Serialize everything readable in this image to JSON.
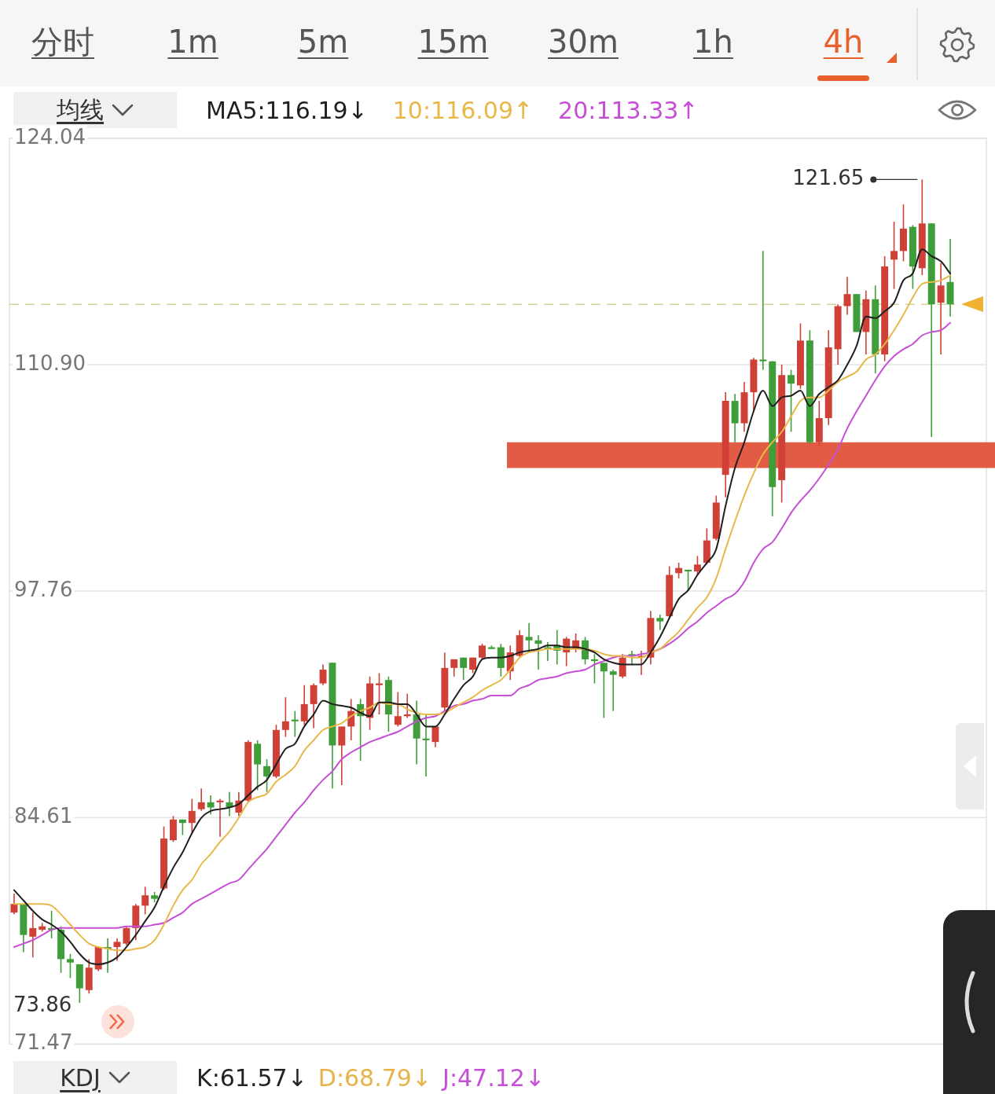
{
  "chart_data": {
    "type": "candlestick",
    "categories": [
      null,
      null,
      null,
      null,
      null,
      null,
      null,
      null,
      null,
      null,
      null,
      null,
      null,
      null,
      null,
      null,
      null,
      null,
      null,
      null,
      null,
      null,
      null,
      null,
      null,
      null,
      null,
      null,
      null,
      null,
      null,
      null,
      null,
      null,
      null,
      null,
      null,
      null,
      null,
      null,
      null,
      null,
      null,
      null,
      null,
      null,
      null,
      null,
      null,
      null,
      null,
      null,
      null,
      null,
      null,
      null,
      null,
      null,
      null,
      null,
      null,
      null,
      null,
      null,
      null,
      null,
      null,
      null,
      null,
      null,
      null,
      null,
      null,
      null,
      null,
      null,
      null,
      null,
      null,
      null,
      null,
      null,
      null,
      null,
      null,
      null,
      null,
      null,
      null,
      null,
      null,
      null,
      null,
      null,
      null,
      null,
      null,
      null,
      null,
      null,
      null
    ],
    "ohlc": [
      [
        79.1,
        80.2,
        79.0,
        79.6
      ],
      [
        79.6,
        79.6,
        76.8,
        77.8
      ],
      [
        77.7,
        79.1,
        76.5,
        78.2
      ],
      [
        78.1,
        78.5,
        78.0,
        78.3
      ],
      [
        78.2,
        79.2,
        77.6,
        78.1
      ],
      [
        78.1,
        78.3,
        75.6,
        76.4
      ],
      [
        76.4,
        76.7,
        75.3,
        76.2
      ],
      [
        76.1,
        76.1,
        73.86,
        74.7
      ],
      [
        74.6,
        76.4,
        74.4,
        75.9
      ],
      [
        75.8,
        77.1,
        75.7,
        77.1
      ],
      [
        77.1,
        77.6,
        75.6,
        77.0
      ],
      [
        77.1,
        77.6,
        76.3,
        77.4
      ],
      [
        77.3,
        78.3,
        77.2,
        78.2
      ],
      [
        78.2,
        79.6,
        77.5,
        79.5
      ],
      [
        79.5,
        80.6,
        79.0,
        80.1
      ],
      [
        80.1,
        80.3,
        79.7,
        79.9
      ],
      [
        80.5,
        84.1,
        80.4,
        83.4
      ],
      [
        83.3,
        84.7,
        83.2,
        84.5
      ],
      [
        84.5,
        84.5,
        83.6,
        84.3
      ],
      [
        84.3,
        85.7,
        83.7,
        85.0
      ],
      [
        85.1,
        86.3,
        85.0,
        85.5
      ],
      [
        85.5,
        85.9,
        84.8,
        85.2
      ],
      [
        85.5,
        85.7,
        83.5,
        85.6
      ],
      [
        85.5,
        86.1,
        84.7,
        85.2
      ],
      [
        84.9,
        86.1,
        84.7,
        85.6
      ],
      [
        85.6,
        89.1,
        85.5,
        89.0
      ],
      [
        88.9,
        89.1,
        86.2,
        87.7
      ],
      [
        87.6,
        88.0,
        86.1,
        87.0
      ],
      [
        87.0,
        90.0,
        86.9,
        89.7
      ],
      [
        89.7,
        91.6,
        89.3,
        90.2
      ],
      [
        90.3,
        90.8,
        89.3,
        90.2
      ],
      [
        90.2,
        92.3,
        90.0,
        91.2
      ],
      [
        91.2,
        92.4,
        89.8,
        92.3
      ],
      [
        92.4,
        93.5,
        92.3,
        93.2
      ],
      [
        93.6,
        93.6,
        86.3,
        88.8
      ],
      [
        88.8,
        89.9,
        86.5,
        89.9
      ],
      [
        89.9,
        91.5,
        89.1,
        90.8
      ],
      [
        91.2,
        91.5,
        87.9,
        90.5
      ],
      [
        90.4,
        92.8,
        89.7,
        92.4
      ],
      [
        92.3,
        93.0,
        90.6,
        92.4
      ],
      [
        92.6,
        92.8,
        89.6,
        90.6
      ],
      [
        90.0,
        91.9,
        89.9,
        90.5
      ],
      [
        90.5,
        91.8,
        90.4,
        90.6
      ],
      [
        90.6,
        91.4,
        87.7,
        89.2
      ],
      [
        89.2,
        90.6,
        87.0,
        89.1
      ],
      [
        89.0,
        89.9,
        88.7,
        89.9
      ],
      [
        91.0,
        94.2,
        90.8,
        93.3
      ],
      [
        93.3,
        93.8,
        92.8,
        93.8
      ],
      [
        93.9,
        93.9,
        92.6,
        93.3
      ],
      [
        93.2,
        93.9,
        93.0,
        93.9
      ],
      [
        93.9,
        94.7,
        93.8,
        94.6
      ],
      [
        94.5,
        94.6,
        94.4,
        94.4
      ],
      [
        94.5,
        94.7,
        92.8,
        93.3
      ],
      [
        93.1,
        94.6,
        92.6,
        94.2
      ],
      [
        94.0,
        95.5,
        93.9,
        95.2
      ],
      [
        95.1,
        95.9,
        94.3,
        94.9
      ],
      [
        94.9,
        95.2,
        93.2,
        94.7
      ],
      [
        94.5,
        94.8,
        93.7,
        94.4
      ],
      [
        94.6,
        95.5,
        93.5,
        94.3
      ],
      [
        94.2,
        95.1,
        93.4,
        95.0
      ],
      [
        94.4,
        95.3,
        94.2,
        94.9
      ],
      [
        94.9,
        95.1,
        93.5,
        93.8
      ],
      [
        93.8,
        94.1,
        92.4,
        93.7
      ],
      [
        93.6,
        93.6,
        90.4,
        93.1
      ],
      [
        93.1,
        93.2,
        90.8,
        92.9
      ],
      [
        92.8,
        94.1,
        92.7,
        93.9
      ],
      [
        94.1,
        94.3,
        93.5,
        94.0
      ],
      [
        93.9,
        94.3,
        92.9,
        94.0
      ],
      [
        93.9,
        96.6,
        93.5,
        96.2
      ],
      [
        96.2,
        96.4,
        95.5,
        96.0
      ],
      [
        96.3,
        99.2,
        96.2,
        98.7
      ],
      [
        98.8,
        99.4,
        98.5,
        99.1
      ],
      [
        99.0,
        99.0,
        97.8,
        98.9
      ],
      [
        98.9,
        99.8,
        98.7,
        99.3
      ],
      [
        99.4,
        101.4,
        99.3,
        100.7
      ],
      [
        100.8,
        103.3,
        100.7,
        102.9
      ],
      [
        104.5,
        109.3,
        103.2,
        108.8
      ],
      [
        108.8,
        109.2,
        106.4,
        107.5
      ],
      [
        107.5,
        109.9,
        107.0,
        109.3
      ],
      [
        109.3,
        111.3,
        108.2,
        111.2
      ],
      [
        111.2,
        117.5,
        110.6,
        111.1
      ],
      [
        111.1,
        111.1,
        102.1,
        103.8
      ],
      [
        104.2,
        110.9,
        102.9,
        110.3
      ],
      [
        110.3,
        110.6,
        107.0,
        109.8
      ],
      [
        109.7,
        113.3,
        109.5,
        112.3
      ],
      [
        112.3,
        112.9,
        106.3,
        106.4
      ],
      [
        106.4,
        108.8,
        106.2,
        107.8
      ],
      [
        107.8,
        112.9,
        107.4,
        111.9
      ],
      [
        111.8,
        114.4,
        110.9,
        114.3
      ],
      [
        114.3,
        116.0,
        113.8,
        115.0
      ],
      [
        115.0,
        115.0,
        112.8,
        112.8
      ],
      [
        112.8,
        115.2,
        111.5,
        114.7
      ],
      [
        114.7,
        115.5,
        110.4,
        111.5
      ],
      [
        111.5,
        117.2,
        111.1,
        116.6
      ],
      [
        117.0,
        119.2,
        115.3,
        117.5
      ],
      [
        117.5,
        120.2,
        116.9,
        118.8
      ],
      [
        118.9,
        119.0,
        115.3,
        116.6
      ],
      [
        116.5,
        121.65,
        116.1,
        119.1
      ],
      [
        119.1,
        119.1,
        106.7,
        114.4
      ],
      [
        114.5,
        116.8,
        111.5,
        115.5
      ],
      [
        115.7,
        118.2,
        113.7,
        114.4
      ]
    ],
    "colors": [
      "#cf4137",
      "#3f9d3a",
      "#cf4137",
      "#cf4137",
      "#3f9d3a",
      "#3f9d3a",
      "#3f9d3a",
      "#3f9d3a",
      "#cf4137",
      "#cf4137",
      "#3f9d3a",
      "#cf4137",
      "#cf4137",
      "#cf4137",
      "#cf4137",
      "#3f9d3a",
      "#cf4137",
      "#cf4137",
      "#3f9d3a",
      "#cf4137",
      "#cf4137",
      "#3f9d3a",
      "#cf4137",
      "#3f9d3a",
      "#cf4137",
      "#cf4137",
      "#3f9d3a",
      "#3f9d3a",
      "#cf4137",
      "#cf4137",
      "#3f9d3a",
      "#cf4137",
      "#cf4137",
      "#cf4137",
      "#3f9d3a",
      "#cf4137",
      "#cf4137",
      "#3f9d3a",
      "#cf4137",
      "#cf4137",
      "#3f9d3a",
      "#cf4137",
      "#cf4137",
      "#3f9d3a",
      "#3f9d3a",
      "#cf4137",
      "#cf4137",
      "#cf4137",
      "#3f9d3a",
      "#cf4137",
      "#cf4137",
      "#3f9d3a",
      "#3f9d3a",
      "#cf4137",
      "#cf4137",
      "#3f9d3a",
      "#3f9d3a",
      "#3f9d3a",
      "#3f9d3a",
      "#cf4137",
      "#cf4137",
      "#3f9d3a",
      "#3f9d3a",
      "#3f9d3a",
      "#3f9d3a",
      "#cf4137",
      "#3f9d3a",
      "#cf4137",
      "#cf4137",
      "#3f9d3a",
      "#cf4137",
      "#cf4137",
      "#3f9d3a",
      "#cf4137",
      "#cf4137",
      "#cf4137",
      "#cf4137",
      "#3f9d3a",
      "#cf4137",
      "#cf4137",
      "#3f9d3a",
      "#3f9d3a",
      "#cf4137",
      "#3f9d3a",
      "#cf4137",
      "#3f9d3a",
      "#cf4137",
      "#cf4137",
      "#cf4137",
      "#cf4137",
      "#3f9d3a",
      "#cf4137",
      "#3f9d3a",
      "#cf4137",
      "#cf4137",
      "#cf4137",
      "#3f9d3a",
      "#cf4137",
      "#3f9d3a",
      "#cf4137",
      "#3f9d3a"
    ],
    "series": [
      {
        "type": "line",
        "name": "MA5:116.19↓",
        "color": "#1f1f1f",
        "values": [
          80.4,
          79.8,
          79.2,
          78.7,
          78.4,
          78.0,
          77.4,
          76.7,
          76.2,
          76.1,
          76.2,
          76.5,
          77.1,
          77.8,
          78.6,
          79.4,
          80.6,
          81.7,
          82.6,
          83.7,
          84.6,
          85.0,
          85.1,
          85.2,
          85.4,
          85.9,
          86.4,
          86.8,
          87.7,
          88.6,
          88.9,
          89.9,
          90.6,
          91.4,
          91.2,
          91.1,
          91.0,
          90.7,
          90.5,
          91.3,
          91.3,
          91.2,
          91.2,
          90.6,
          89.9,
          89.9,
          90.6,
          91.5,
          92.3,
          92.8,
          93.8,
          93.9,
          93.9,
          94.0,
          94.2,
          94.3,
          94.4,
          94.6,
          94.6,
          94.5,
          94.5,
          94.4,
          94.2,
          93.8,
          93.6,
          93.5,
          93.5,
          93.5,
          94.2,
          95.1,
          96.2,
          97.3,
          97.8,
          98.7,
          99.4,
          100.2,
          102.7,
          104.9,
          106.4,
          108.2,
          109.4,
          108.5,
          109.0,
          109.1,
          109.4,
          108.5,
          109.2,
          109.6,
          110.0,
          110.9,
          112.0,
          113.7,
          113.6,
          114.0,
          114.5,
          115.8,
          116.2,
          117.6,
          117.2,
          116.9,
          116.19
        ]
      },
      {
        "type": "line",
        "name": "10:116.09↑",
        "color": "#e8b84a",
        "values": [
          79.6,
          79.6,
          79.6,
          79.6,
          79.5,
          79.0,
          78.4,
          77.8,
          77.3,
          77.1,
          77.0,
          76.9,
          76.9,
          77.0,
          77.1,
          77.5,
          78.4,
          79.5,
          80.4,
          81.0,
          81.9,
          82.5,
          83.2,
          83.8,
          84.6,
          85.5,
          85.8,
          86.0,
          86.7,
          87.1,
          87.6,
          88.5,
          89.1,
          89.7,
          89.9,
          90.1,
          90.5,
          90.8,
          91.0,
          91.3,
          91.2,
          91.2,
          90.9,
          90.7,
          90.6,
          90.6,
          90.7,
          91.0,
          91.3,
          91.6,
          92.0,
          92.3,
          92.6,
          93.2,
          93.9,
          94.2,
          94.3,
          94.4,
          94.4,
          94.4,
          94.4,
          94.4,
          94.3,
          94.1,
          94.0,
          94.0,
          93.9,
          93.9,
          94.2,
          94.4,
          94.9,
          95.4,
          96.1,
          96.8,
          97.4,
          98.5,
          100.2,
          101.8,
          103.3,
          104.6,
          105.7,
          106.4,
          107.0,
          107.9,
          108.8,
          109.0,
          109.0,
          109.4,
          109.9,
          110.2,
          110.5,
          111.2,
          111.5,
          112.1,
          112.9,
          113.8,
          114.8,
          115.6,
          115.7,
          115.8,
          116.09
        ]
      },
      {
        "type": "line",
        "name": "20:113.33↑",
        "color": "#c64fd6",
        "values": [
          77.1,
          77.3,
          77.5,
          77.8,
          78.1,
          78.2,
          78.2,
          78.2,
          78.2,
          78.2,
          78.2,
          78.2,
          78.3,
          78.3,
          78.3,
          78.4,
          78.5,
          78.8,
          79.1,
          79.6,
          79.9,
          80.2,
          80.5,
          80.8,
          81.0,
          81.6,
          82.2,
          82.8,
          83.5,
          84.2,
          84.9,
          85.5,
          86.2,
          86.8,
          87.3,
          88.0,
          88.4,
          88.7,
          89.0,
          89.2,
          89.4,
          89.6,
          89.9,
          90.2,
          90.4,
          90.5,
          90.8,
          91.1,
          91.2,
          91.4,
          91.5,
          91.7,
          91.7,
          91.7,
          92.1,
          92.3,
          92.6,
          92.7,
          92.8,
          93.0,
          93.1,
          93.2,
          93.5,
          93.7,
          93.9,
          94.0,
          94.0,
          94.1,
          94.2,
          94.4,
          94.7,
          95.1,
          95.6,
          96.0,
          96.5,
          96.9,
          97.3,
          97.6,
          98.3,
          99.4,
          100.2,
          100.6,
          101.4,
          102.3,
          103.0,
          103.6,
          104.3,
          105.1,
          106.0,
          107.2,
          108.2,
          109.1,
          110.0,
          110.8,
          111.4,
          111.8,
          112.1,
          112.6,
          112.8,
          112.9,
          113.33
        ]
      }
    ],
    "ylim": [
      71.47,
      124.04
    ],
    "yticks": [
      124.04,
      {
        "value": 110.9,
        "label": "110.90"
      },
      97.76,
      84.61,
      71.47
    ],
    "grid": "y",
    "tick_labels": "y",
    "legend": "top left",
    "ref_lines": [
      {
        "axis": "y",
        "value": 114.4,
        "color": "#d6d39b",
        "line_style": "dashed"
      }
    ],
    "bands": [
      {
        "axis": "y",
        "from": 104.9,
        "to": 106.4,
        "color": "#e25b45"
      }
    ],
    "annotations": [
      "分时",
      "1m",
      "5m",
      "15m",
      "30m",
      "1h",
      "4h",
      "均线",
      "KDJ",
      "K:61.57↓",
      "D:68.79↓",
      "J:47.12↓",
      "121.65",
      "73.86"
    ]
  }
}
